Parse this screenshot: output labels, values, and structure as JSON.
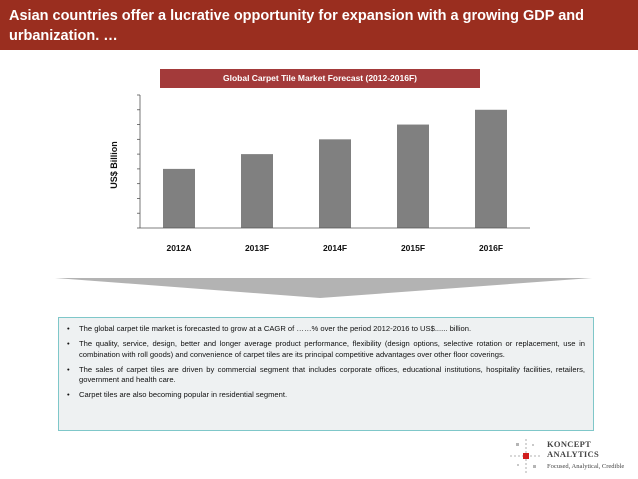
{
  "header": {
    "title": "Asian countries offer a lucrative opportunity for expansion with a growing GDP and urbanization. …"
  },
  "chart_data": {
    "type": "bar",
    "title": "Global Carpet Tile Market Forecast (2012-2016F)",
    "xlabel": "",
    "ylabel": "US$ Billion",
    "categories": [
      "2012A",
      "2013F",
      "2014F",
      "2015F",
      "2016F"
    ],
    "values": [
      4.0,
      5.0,
      6.0,
      7.0,
      8.0
    ],
    "ylim": [
      0,
      9
    ],
    "ytick_count": 10,
    "grid": false,
    "bar_color": "#808080"
  },
  "notes": {
    "bullet": "•",
    "items": [
      "The global carpet tile market is forecasted to grow at a CAGR of ……% over the period 2012-2016 to US$...... billion.",
      "The quality, service, design, better and longer average product performance, flexibility (design options, selective rotation or replacement, use in combination with roll goods) and convenience of carpet tiles are its principal competitive advantages over other floor coverings.",
      "The sales of carpet tiles are driven by commercial segment that includes corporate offices, educational institutions, hospitality facilities, retailers, government and health care.",
      "Carpet tiles are also becoming popular in residential segment."
    ]
  },
  "logo": {
    "line1": "KONCEPT",
    "line2": "ANALYTICS",
    "tagline": "Focused, Analytical, Credible"
  },
  "colors": {
    "header_bg": "#9a2e1f",
    "title_bg": "#a33a3a",
    "arrow": "#b3b3b3",
    "notes_bg": "#eef1f2",
    "notes_border": "#7fc7c9"
  }
}
